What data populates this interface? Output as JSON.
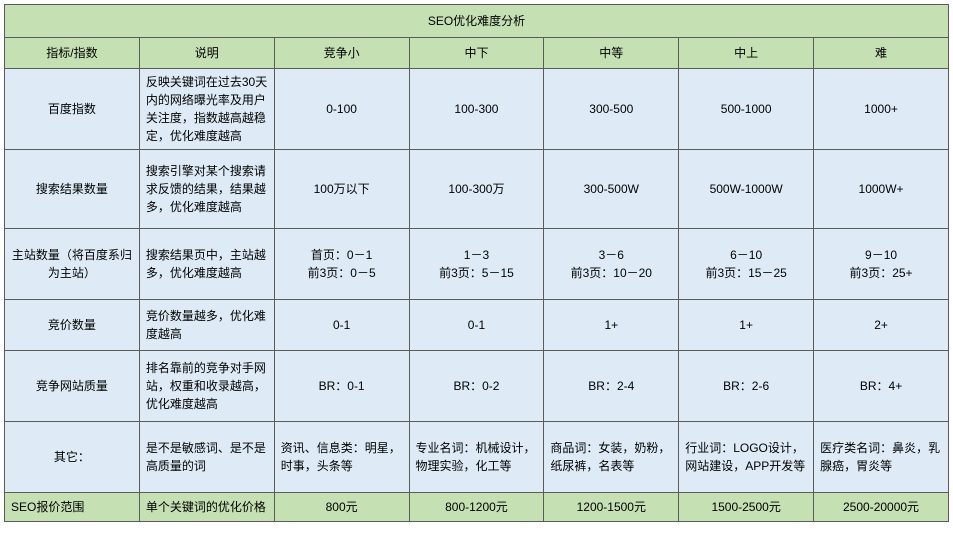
{
  "colors": {
    "title_bg": "#c5e0b3",
    "header_bg": "#c5e0b3",
    "metric_bg": "#deebf6",
    "desc_bg": "#deebf6",
    "level_bg": "#deebf6",
    "footer_bg": "#c5e0b3",
    "border": "#5b5b5b"
  },
  "title": "SEO优化难度分析",
  "headers": {
    "metric": "指标/指数",
    "desc": "说明",
    "l1": "竞争小",
    "l2": "中下",
    "l3": "中等",
    "l4": "中上",
    "l5": "难"
  },
  "rows": [
    {
      "metric": "百度指数",
      "desc": "反映关键词在过去30天内的网络曝光率及用户关注度，指数越高越稳定，优化难度越高",
      "l1": "0-100",
      "l2": "100-300",
      "l3": "300-500",
      "l4": "500-1000",
      "l5": "1000+"
    },
    {
      "metric": "搜索结果数量",
      "desc": "搜索引擎对某个搜索请求反馈的结果，结果越多，优化难度越高",
      "l1": "100万以下",
      "l2": "100-300万",
      "l3": "300-500W",
      "l4": "500W-1000W",
      "l5": "1000W+"
    },
    {
      "metric": "主站数量（将百度系归为主站）",
      "desc": "搜索结果页中，主站越多，优化难度越高",
      "l1": "首页：0－1\n前3页：0－5",
      "l2": "1－3\n前3页：5－15",
      "l3": "3－6\n前3页：10－20",
      "l4": "6－10\n前3页：15－25",
      "l5": "9－10\n前3页：25+"
    },
    {
      "metric": "竞价数量",
      "desc": "竞价数量越多，优化难度越高",
      "l1": "0-1",
      "l2": "0-1",
      "l3": "1+",
      "l4": "1+",
      "l5": "2+"
    },
    {
      "metric": "竞争网站质量",
      "desc": "排名靠前的竞争对手网站，权重和收录越高，优化难度越高",
      "l1": "BR：0-1",
      "l2": "BR：0-2",
      "l3": "BR：2-4",
      "l4": "BR：2-6",
      "l5": "BR：4+"
    },
    {
      "metric": "其它：",
      "desc": "是不是敏感词、是不是高质量的词",
      "l1": "资讯、信息类：明星，时事，头条等",
      "l2": "专业名词：机械设计，物理实验，化工等",
      "l3": "商品词：女装，奶粉，纸尿裤，名表等",
      "l4": "行业词：LOGO设计，网站建设，APP开发等",
      "l5": "医疗类名词：鼻炎，乳腺癌，胃炎等"
    }
  ],
  "footer": {
    "metric": "SEO报价范围",
    "desc": "单个关键词的优化价格",
    "l1": "800元",
    "l2": "800-1200元",
    "l3": "1200-1500元",
    "l4": "1500-2500元",
    "l5": "2500-20000元"
  }
}
